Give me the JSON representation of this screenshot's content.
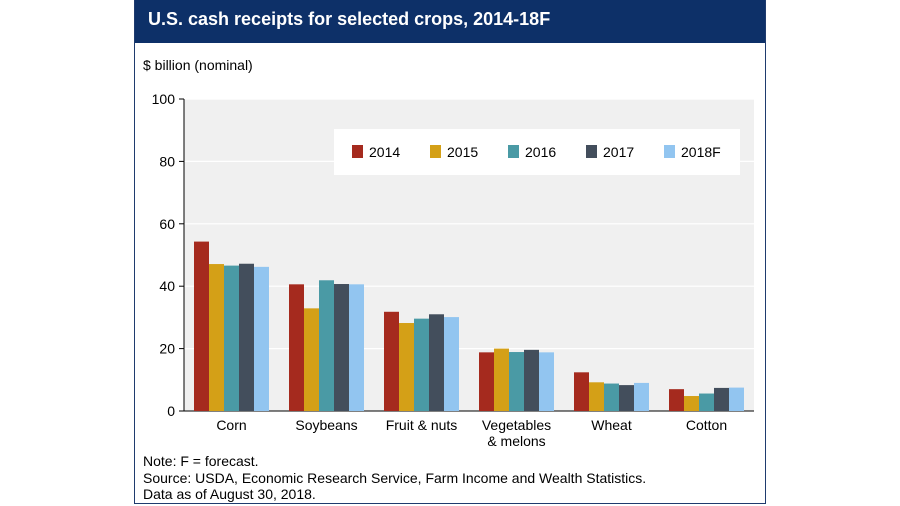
{
  "title": "U.S. cash receipts for selected crops, 2014-18F",
  "y_unit": "$ billion (nominal)",
  "chart_data": {
    "type": "bar",
    "title": "U.S. cash receipts for selected crops, 2014-18F",
    "ylabel": "$ billion (nominal)",
    "xlabel": "",
    "ylim": [
      0,
      100
    ],
    "yticks": [
      0,
      20,
      40,
      60,
      80,
      100
    ],
    "grid": true,
    "legend_position": "top-right",
    "categories": [
      "Corn",
      "Soybeans",
      "Fruit & nuts",
      "Vegetables & melons",
      "Wheat",
      "Cotton"
    ],
    "category_lines": [
      [
        "Corn"
      ],
      [
        "Soybeans"
      ],
      [
        "Fruit & nuts"
      ],
      [
        "Vegetables",
        "& melons"
      ],
      [
        "Wheat"
      ],
      [
        "Cotton"
      ]
    ],
    "series": [
      {
        "name": "2014",
        "color": "#a52a1e",
        "values": [
          54.3,
          40.6,
          31.8,
          18.8,
          12.4,
          7.0
        ]
      },
      {
        "name": "2015",
        "color": "#d4a017",
        "values": [
          47.1,
          32.9,
          28.2,
          20.0,
          9.2,
          4.8
        ]
      },
      {
        "name": "2016",
        "color": "#4a9aa5",
        "values": [
          46.6,
          41.9,
          29.6,
          18.9,
          8.8,
          5.6
        ]
      },
      {
        "name": "2017",
        "color": "#434e5c",
        "values": [
          47.2,
          40.7,
          31.0,
          19.6,
          8.3,
          7.4
        ]
      },
      {
        "name": "2018F",
        "color": "#92c5f0",
        "values": [
          46.2,
          40.6,
          30.1,
          18.8,
          9.0,
          7.5
        ]
      }
    ]
  },
  "notes": [
    "Note: F = forecast.",
    "Source: USDA, Economic Research Service, Farm Income and Wealth Statistics.",
    "Data as of August 30, 2018."
  ],
  "colors": {
    "title_bar": "#0d3068",
    "plot_bg": "#f0f0f0",
    "grid": "#ffffff"
  }
}
